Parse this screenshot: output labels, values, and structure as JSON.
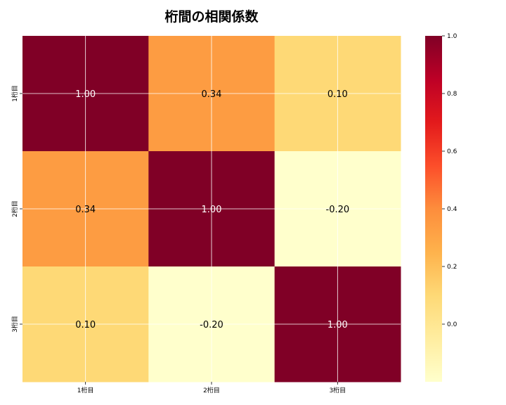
{
  "chart_data": {
    "type": "heatmap",
    "title": "桁間の相関係数",
    "xlabel": "",
    "ylabel": "",
    "x_labels": [
      "1桁目",
      "2桁目",
      "3桁目"
    ],
    "y_labels": [
      "1桁目",
      "2桁目",
      "3桁目"
    ],
    "values": [
      [
        1.0,
        0.34,
        0.1
      ],
      [
        0.34,
        1.0,
        -0.2
      ],
      [
        0.1,
        -0.2,
        1.0
      ]
    ],
    "annotations": [
      [
        "1.00",
        "0.34",
        "0.10"
      ],
      [
        "0.34",
        "1.00",
        "-0.20"
      ],
      [
        "0.10",
        "-0.20",
        "1.00"
      ]
    ],
    "colormap": "YlOrRd",
    "colorbar": {
      "range": [
        -0.2,
        1.0
      ],
      "ticks": [
        0.0,
        0.2,
        0.4,
        0.6,
        0.8,
        1.0
      ],
      "tick_labels": [
        "0.0",
        "0.2",
        "0.4",
        "0.6",
        "0.8",
        "1.0"
      ]
    },
    "grid": true
  },
  "colors": {
    "cmap_stops": [
      "#ffffcc",
      "#ffeda0",
      "#fed976",
      "#feb24c",
      "#fd8d3c",
      "#fc4e2a",
      "#e31a1c",
      "#bd0026",
      "#800026"
    ],
    "grid_line": "#ffffff",
    "annot_dark_text": "#000000",
    "annot_light_text": "#ffffff"
  }
}
